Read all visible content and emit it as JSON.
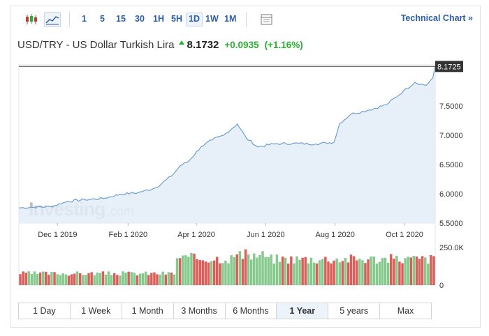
{
  "toolbar": {
    "icons": [
      "candlestick-icon",
      "line-chart-icon",
      "grid-icon"
    ],
    "periods": [
      "1",
      "5",
      "15",
      "30",
      "1H",
      "5H",
      "1D",
      "1W",
      "1M"
    ],
    "active_period": "1D",
    "technical_chart": "Technical Chart »"
  },
  "header": {
    "instrument": "USD/TRY - US Dollar Turkish Lira",
    "last": "8.1732",
    "change": "+0.0935",
    "change_pct": "(+1.16%)"
  },
  "watermark": {
    "text": "Investing",
    "suffix": ".com"
  },
  "ranges": [
    "1 Day",
    "1 Week",
    "1 Month",
    "3 Months",
    "6 Months",
    "1 Year",
    "5 years",
    "Max"
  ],
  "active_range": "1 Year",
  "colors": {
    "line": "#6f9fd0",
    "fill": "#e3edf7",
    "up": "#86c98d",
    "down": "#d9605a",
    "accent": "#2a5ea8",
    "gain": "#2cae35"
  },
  "chart_data": {
    "type": "area",
    "series": [
      {
        "x": [
          "2019-10-28",
          "2019-11-10",
          "2019-11-25",
          "2019-12-10",
          "2019-12-25",
          "2020-01-10",
          "2020-01-25",
          "2020-02-10",
          "2020-02-25",
          "2020-03-10",
          "2020-03-18",
          "2020-03-25",
          "2020-04-05",
          "2020-04-15",
          "2020-04-25",
          "2020-05-07",
          "2020-05-15",
          "2020-05-25",
          "2020-06-08",
          "2020-06-25",
          "2020-07-15",
          "2020-07-31",
          "2020-08-05",
          "2020-08-15",
          "2020-08-31",
          "2020-09-15",
          "2020-09-30",
          "2020-10-10",
          "2020-10-20",
          "2020-10-26",
          "2020-10-28"
        ],
        "values": [
          5.76,
          5.77,
          5.78,
          5.87,
          5.9,
          5.92,
          5.99,
          6.02,
          6.1,
          6.3,
          6.48,
          6.55,
          6.8,
          6.92,
          7.0,
          7.19,
          6.95,
          6.8,
          6.85,
          6.86,
          6.85,
          6.88,
          7.2,
          7.36,
          7.43,
          7.52,
          7.75,
          7.9,
          7.85,
          7.98,
          8.17
        ]
      }
    ],
    "x_ticks": [
      "Dec 1 2019",
      "Feb 1 2020",
      "Apr 1 2020",
      "Jun 1 2020",
      "Aug 1 2020",
      "Oct 1 2020"
    ],
    "x_tick_dates": [
      "2019-12-01",
      "2020-02-01",
      "2020-04-01",
      "2020-06-01",
      "2020-08-01",
      "2020-10-01"
    ],
    "y_ticks": [
      "5.5000",
      "6.0000",
      "6.5000",
      "7.0000",
      "7.5000"
    ],
    "y_tick_values": [
      5.5,
      6.0,
      6.5,
      7.0,
      7.5
    ],
    "ylim": [
      5.5,
      8.2
    ],
    "xlim": [
      "2019-10-28",
      "2020-10-28"
    ],
    "last_price_label": "8.1725",
    "last_price_value": 8.1725,
    "volume": {
      "y_ticks": [
        "250.0K",
        "0"
      ],
      "y_tick_values": [
        250000,
        0
      ],
      "ylim": [
        0,
        250000
      ],
      "levels": [
        {
          "from": "2019-10-28",
          "to": "2020-03-14",
          "value": 80000
        },
        {
          "from": "2020-03-15",
          "to": "2020-05-01",
          "value": 185000
        },
        {
          "from": "2020-05-02",
          "to": "2020-05-31",
          "value": 205000
        },
        {
          "from": "2020-06-01",
          "to": "2020-10-28",
          "value": 180000
        }
      ]
    }
  }
}
